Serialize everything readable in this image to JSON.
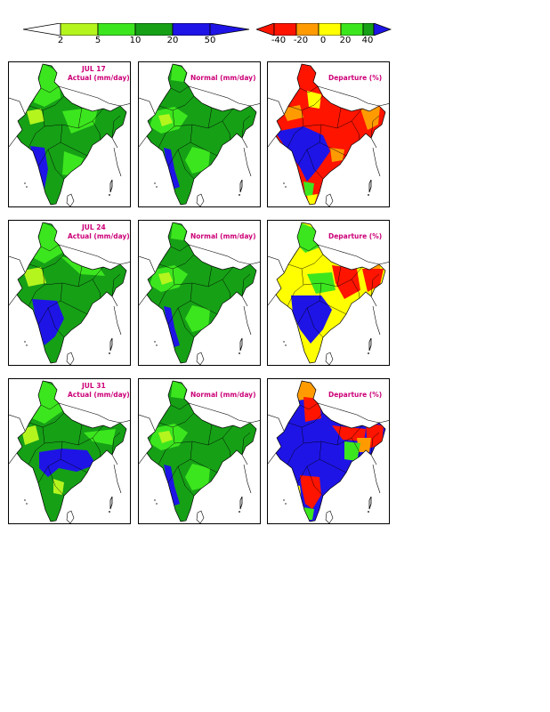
{
  "colorbars": {
    "rainfall": {
      "ticks": [
        "2",
        "5",
        "10",
        "20",
        "50"
      ],
      "colors": [
        "#ffffff",
        "#b4f51e",
        "#3ce61e",
        "#16a016",
        "#1e14e6",
        "#1e14e6"
      ]
    },
    "departure": {
      "ticks": [
        "-40",
        "-20",
        "0",
        "20",
        "40"
      ],
      "colors": [
        "#ff1400",
        "#ff9b00",
        "#ffff00",
        "#3ce61e",
        "#16a016",
        "#1e14e6"
      ]
    }
  },
  "rows": [
    {
      "date": "JUL 17",
      "actual": "Actual (mm/day)",
      "normal": "Normal (mm/day)",
      "departure": "Departure (%)"
    },
    {
      "date": "JUL 24",
      "actual": "Actual (mm/day)",
      "normal": "Normal (mm/day)",
      "departure": "Departure (%)"
    },
    {
      "date": "JUL 31",
      "actual": "Actual (mm/day)",
      "normal": "Normal (mm/day)",
      "departure": "Departure (%)"
    }
  ],
  "palette": {
    "title_color": "#cc0077",
    "light_green": "#b4f51e",
    "green": "#3ce61e",
    "dark_green": "#16a016",
    "blue": "#1e14e6",
    "yellow": "#ffff00",
    "orange": "#ff9b00",
    "red": "#ff1400"
  }
}
